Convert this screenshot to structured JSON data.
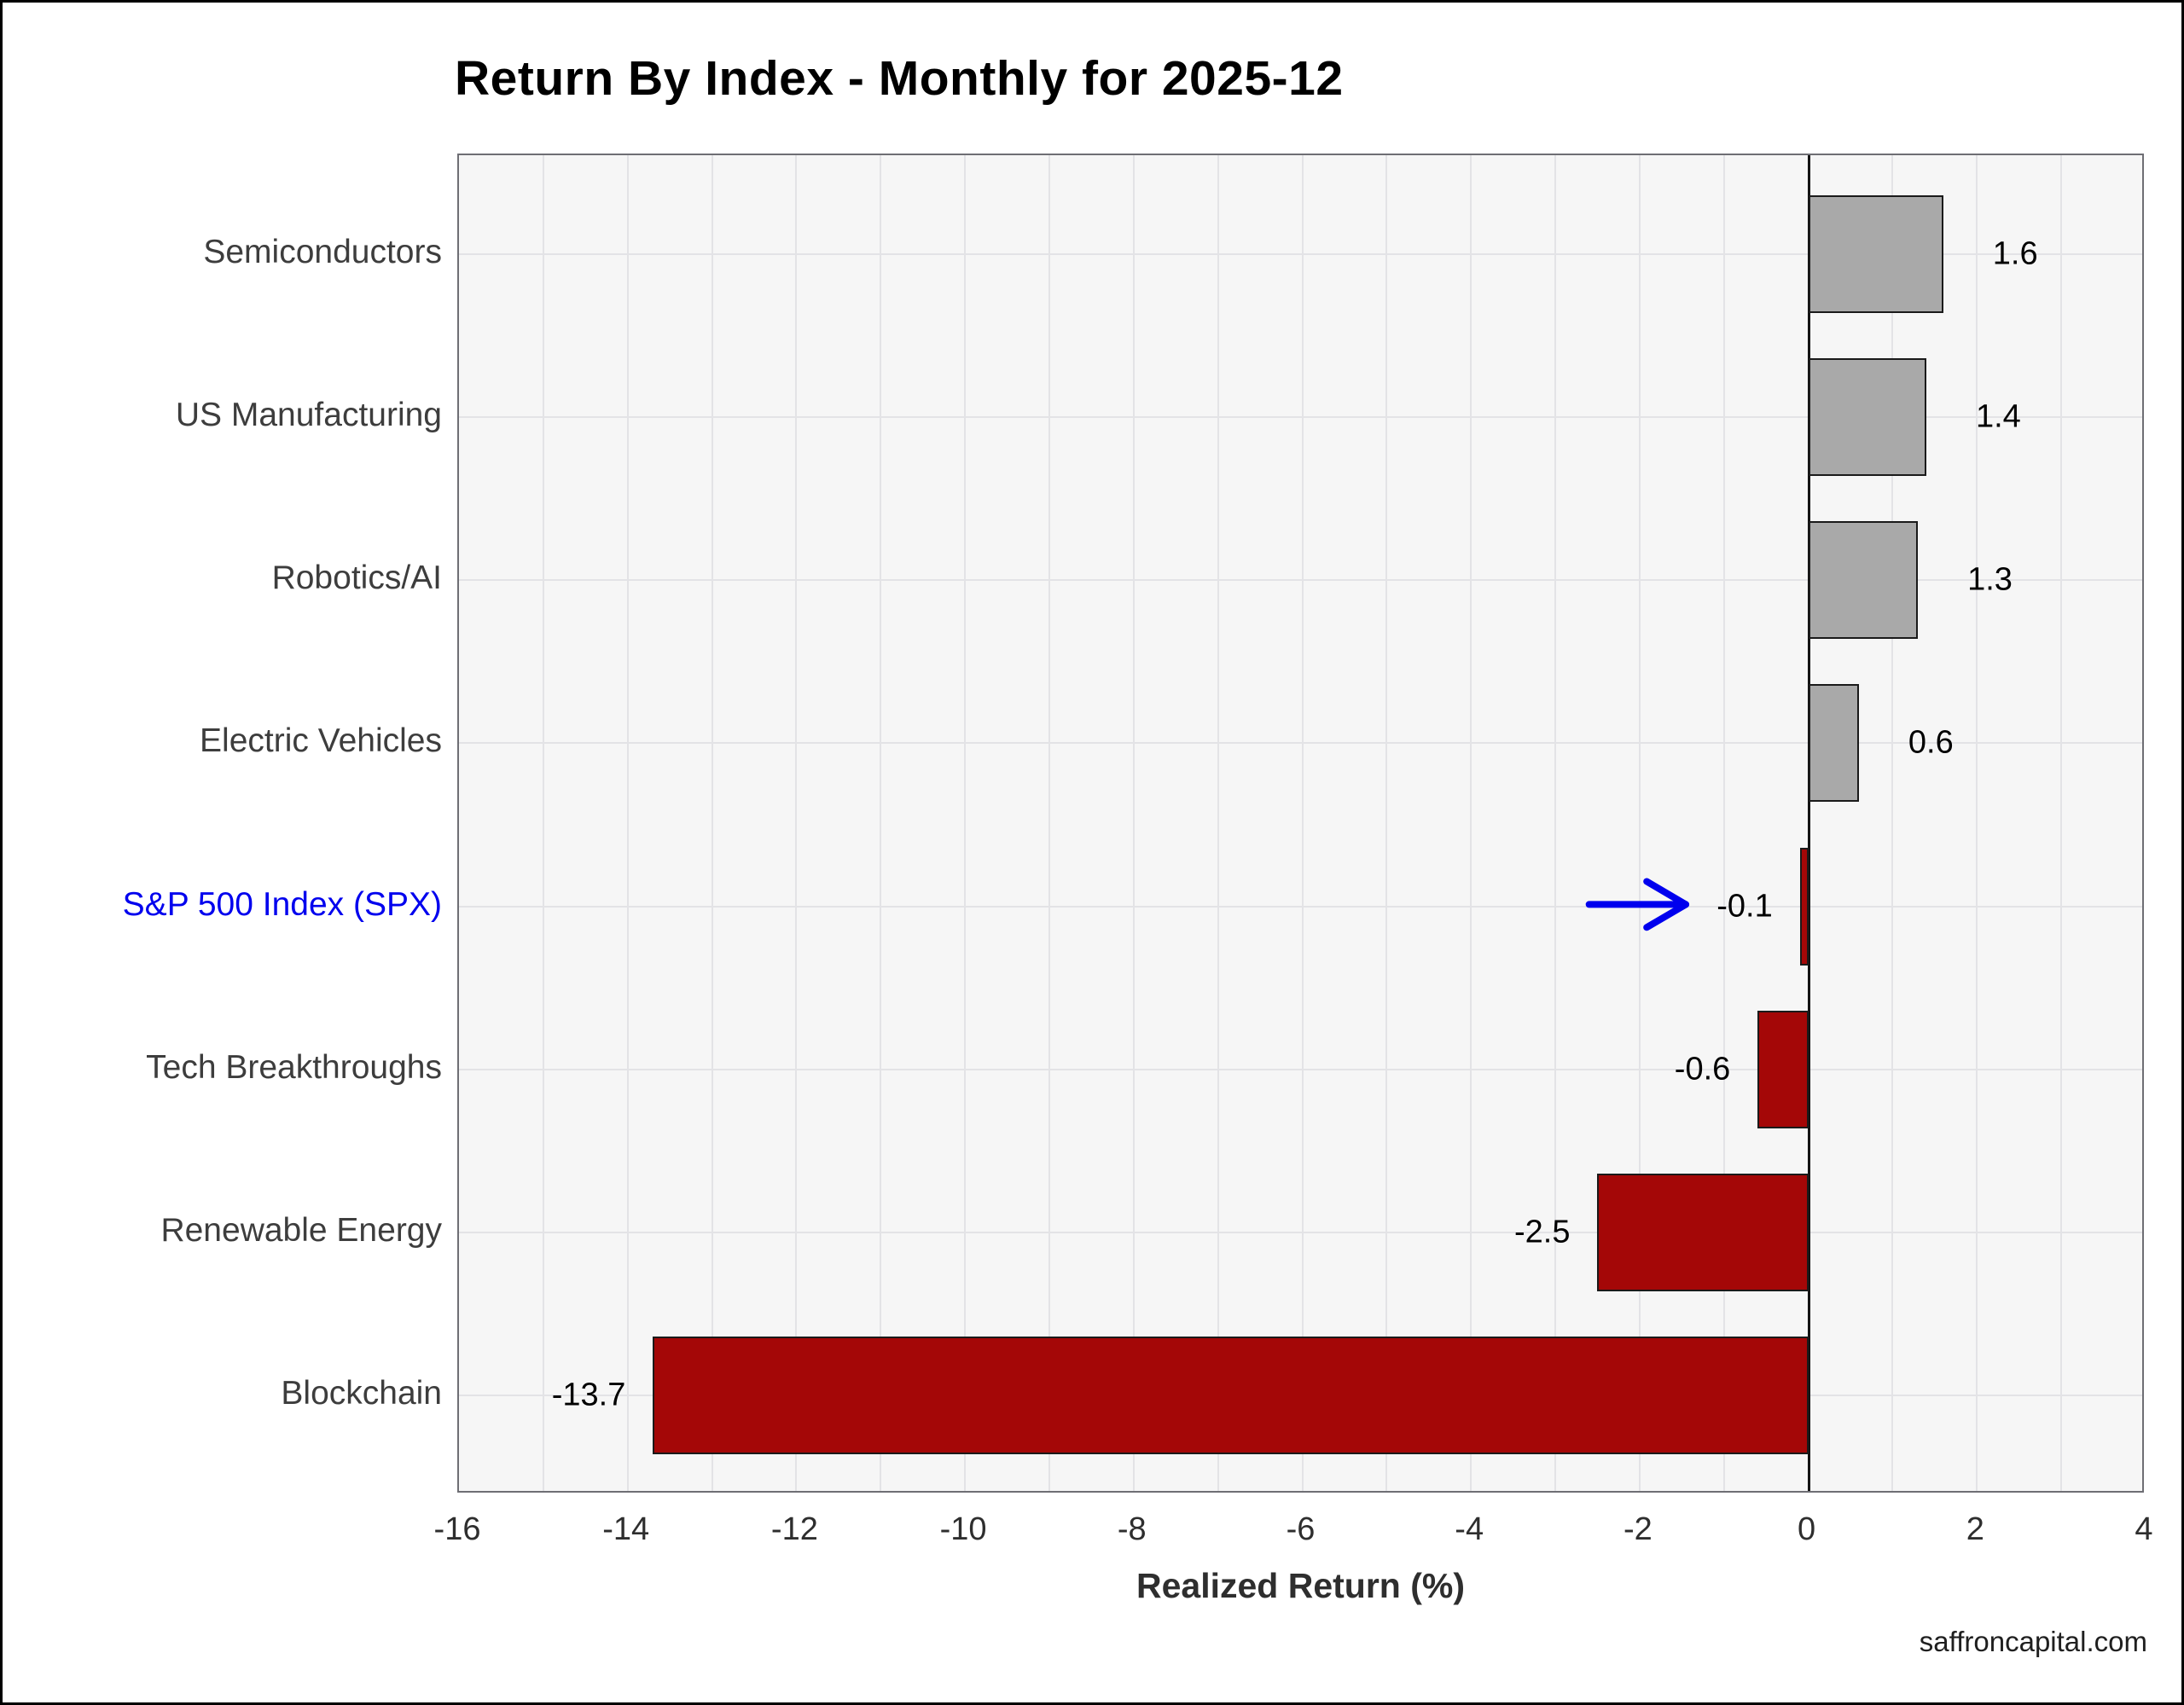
{
  "watermark": "saffroncapital.com",
  "chart_data": {
    "type": "bar",
    "orientation": "horizontal",
    "title": "Return By Index - Monthly for 2025-12",
    "xlabel": "Realized Return (%)",
    "categories": [
      "Semiconductors",
      "US Manufacturing",
      "Robotics/AI",
      "Electric Vehicles",
      "S&P 500 Index (SPX)",
      "Tech Breakthroughs",
      "Renewable Energy",
      "Blockchain"
    ],
    "values": [
      1.6,
      1.4,
      1.3,
      0.6,
      -0.1,
      -0.6,
      -2.5,
      -13.7
    ],
    "value_labels": [
      "1.6",
      "1.4",
      "1.3",
      "0.6",
      "-0.1",
      "-0.6",
      "-2.5",
      "-13.7"
    ],
    "xlim": [
      -16,
      4
    ],
    "xticks": [
      -16,
      -14,
      -12,
      -10,
      -8,
      -6,
      -4,
      -2,
      0,
      2,
      4
    ],
    "minor_grid_step": 1,
    "grid": true,
    "legend": "none",
    "highlight_category": "S&P 500 Index (SPX)",
    "annotation": {
      "target_category": "S&P 500 Index (SPX)",
      "arrow_from_x": -2.57,
      "arrow_to_x": -1.42
    },
    "colors": {
      "positive_bar": "#a9a9a9",
      "negative_bar": "#a40707",
      "bar_border": "#1a1a1a",
      "highlight_label": "#0000ee",
      "annotation_arrow": "#0000ee",
      "grid": "#e3e3e6",
      "zero_line": "#141414",
      "plot_bg": "#f6f6f6",
      "plot_border": "#6e6e74",
      "category_label": "#3d3d3d",
      "tick_label": "#2e2e2e",
      "value_label": "#000000"
    }
  }
}
